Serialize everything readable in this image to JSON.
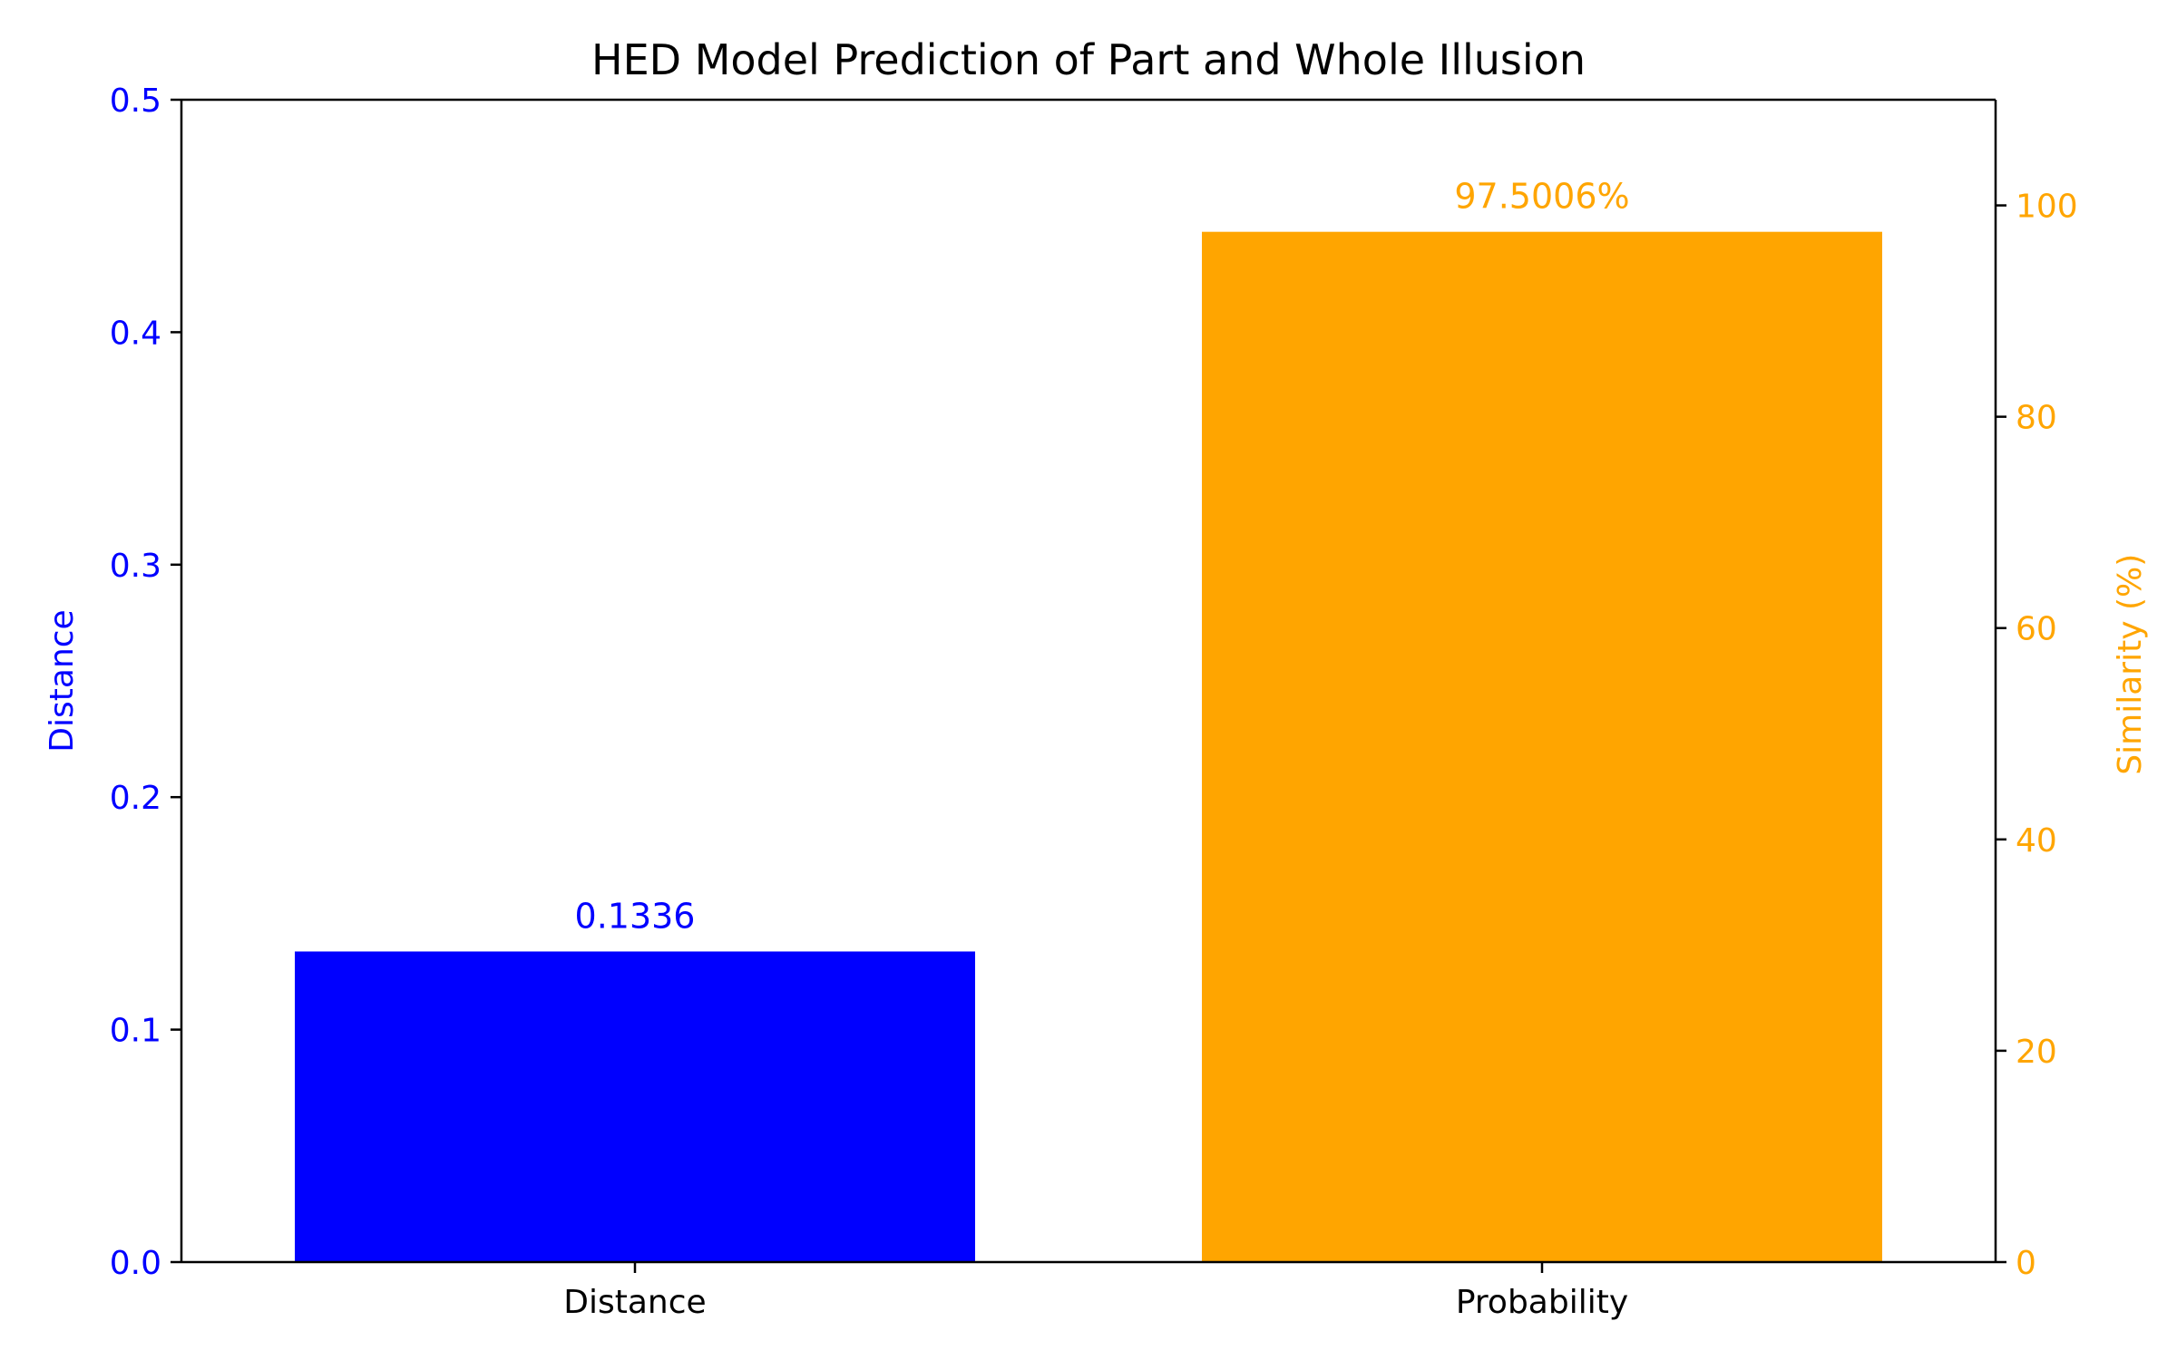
{
  "chart_data": {
    "type": "bar",
    "title": "HED Model Prediction of Part and Whole Illusion",
    "categories": [
      "Distance",
      "Probability"
    ],
    "xlabel": "",
    "left_axis": {
      "ylabel": "Distance",
      "ylim": [
        0,
        0.5
      ],
      "ticks": [
        0.0,
        0.1,
        0.2,
        0.3,
        0.4,
        0.5
      ],
      "tick_labels": [
        "0.0",
        "0.1",
        "0.2",
        "0.3",
        "0.4",
        "0.5"
      ],
      "color": "#0000ff"
    },
    "right_axis": {
      "ylabel": "Similarity (%)",
      "ylim": [
        0,
        110
      ],
      "ticks": [
        0,
        20,
        40,
        60,
        80,
        100
      ],
      "tick_labels": [
        "0",
        "20",
        "40",
        "60",
        "80",
        "100"
      ],
      "color": "#ffa500"
    },
    "bars": [
      {
        "category": "Distance",
        "value": 0.1336,
        "axis": "left",
        "color": "#0000ff",
        "label": "0.1336"
      },
      {
        "category": "Probability",
        "value": 97.5006,
        "axis": "right",
        "color": "#ffa500",
        "label": "97.5006%"
      }
    ],
    "grid": false,
    "legend": "none"
  }
}
